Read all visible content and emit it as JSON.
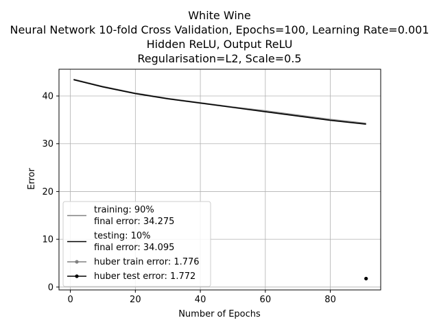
{
  "chart_data": {
    "type": "line",
    "title_lines": [
      "White Wine",
      "Neural Network 10-fold Cross Validation, Epochs=100, Learning Rate=0.001",
      "Hidden ReLU, Output ReLU",
      "Regularisation=L2, Scale=0.5"
    ],
    "xlabel": "Number of Epochs",
    "ylabel": "Error",
    "xlim": [
      -3.5,
      95.5
    ],
    "ylim": [
      -0.6,
      45.6
    ],
    "xticks": [
      0,
      20,
      40,
      60,
      80
    ],
    "yticks": [
      0,
      10,
      20,
      30,
      40
    ],
    "grid": true,
    "legend_position": "lower-left",
    "series": [
      {
        "name": "training: 90%\nfinal error: 34.275",
        "legend_lines": [
          "training: 90%",
          "final error: 34.275"
        ],
        "color": "#808080",
        "style": "line",
        "x": [
          1,
          10,
          20,
          30,
          40,
          50,
          60,
          70,
          80,
          91
        ],
        "y": [
          43.5,
          42.0,
          40.6,
          39.5,
          38.6,
          37.7,
          36.9,
          36.0,
          35.1,
          34.275
        ]
      },
      {
        "name": "testing: 10%\nfinal error: 34.095",
        "legend_lines": [
          "testing: 10%",
          "final error: 34.095"
        ],
        "color": "#000000",
        "style": "line",
        "x": [
          1,
          10,
          20,
          30,
          40,
          50,
          60,
          70,
          80,
          91
        ],
        "y": [
          43.4,
          41.9,
          40.5,
          39.4,
          38.5,
          37.6,
          36.7,
          35.8,
          34.9,
          34.095
        ]
      },
      {
        "name": "huber train error: 1.776",
        "legend_lines": [
          "huber train error: 1.776"
        ],
        "color": "#808080",
        "style": "marker-line",
        "x": [
          91
        ],
        "y": [
          1.776
        ]
      },
      {
        "name": "huber test error: 1.772",
        "legend_lines": [
          "huber test error: 1.772"
        ],
        "color": "#000000",
        "style": "marker-line",
        "x": [
          91
        ],
        "y": [
          1.772
        ]
      }
    ]
  }
}
